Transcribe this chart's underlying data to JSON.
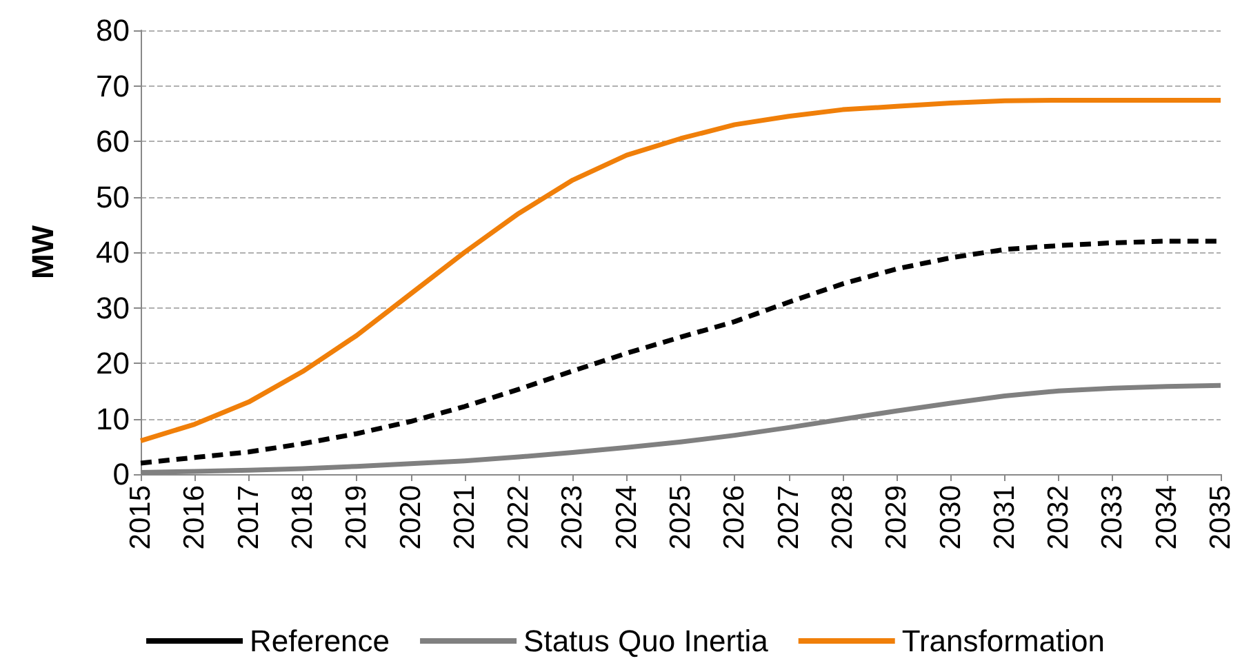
{
  "chart_data": {
    "type": "line",
    "ylabel": "MW",
    "categories": [
      "2015",
      "2016",
      "2017",
      "2018",
      "2019",
      "2020",
      "2021",
      "2022",
      "2023",
      "2024",
      "2025",
      "2026",
      "2027",
      "2028",
      "2029",
      "2030",
      "2031",
      "2032",
      "2033",
      "2034",
      "2035"
    ],
    "series": [
      {
        "name": "Reference",
        "color": "#000000",
        "line_style": "dashed",
        "values": [
          2,
          3,
          4,
          5.5,
          7.3,
          9.5,
          12.2,
          15.3,
          18.6,
          21.8,
          24.7,
          27.5,
          31,
          34.3,
          37,
          39,
          40.5,
          41.2,
          41.7,
          42,
          42
        ]
      },
      {
        "name": "Status Quo Inertia",
        "color": "#808080",
        "line_style": "solid",
        "values": [
          0.3,
          0.5,
          0.7,
          1,
          1.4,
          1.9,
          2.4,
          3.1,
          3.9,
          4.8,
          5.8,
          7,
          8.4,
          9.9,
          11.4,
          12.8,
          14.1,
          15,
          15.5,
          15.8,
          16
        ]
      },
      {
        "name": "Transformation",
        "color": "#f07f09",
        "line_style": "solid",
        "values": [
          6,
          9,
          13,
          18.5,
          25,
          32.5,
          40,
          47,
          53,
          57.5,
          60.5,
          63,
          64.5,
          65.7,
          66.3,
          66.9,
          67.3,
          67.4,
          67.4,
          67.4,
          67.4
        ]
      }
    ],
    "ylim": [
      0,
      80
    ],
    "yticks": [
      0,
      10,
      20,
      30,
      40,
      50,
      60,
      70,
      80
    ],
    "grid": "y",
    "legend": "bottom",
    "marker": "none"
  }
}
